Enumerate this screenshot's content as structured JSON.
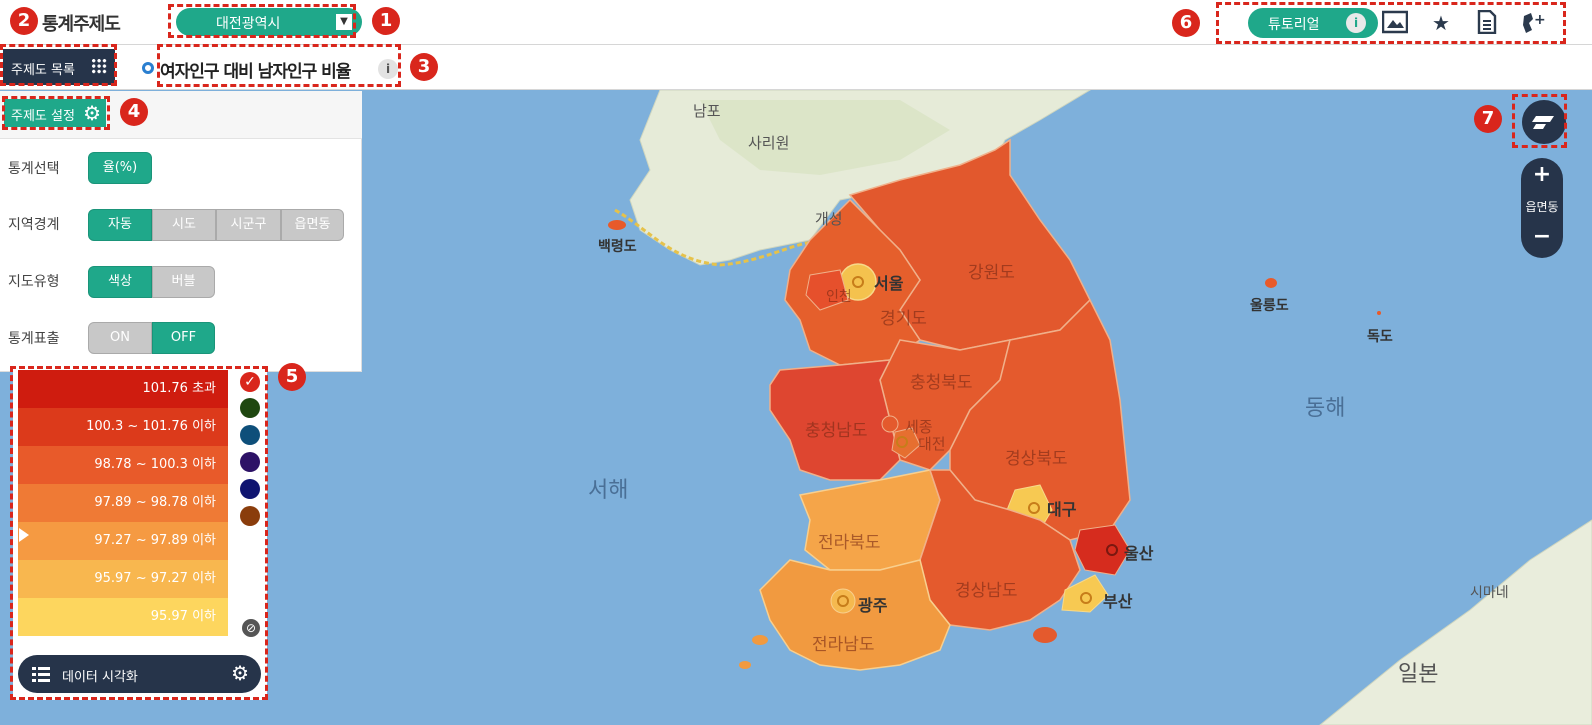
{
  "header": {
    "app_title": "통계주제도",
    "region_select": "대전광역시",
    "tutorial_label": "튜토리얼"
  },
  "subbar": {
    "theme_list_label": "주제도 목록",
    "map_title": "여자인구 대비 남자인구 비율"
  },
  "settings": {
    "button_label": "주제도 설정",
    "rows": [
      {
        "label": "통계선택",
        "options": [
          "율(%)"
        ],
        "selected": 0
      },
      {
        "label": "지역경계",
        "options": [
          "자동",
          "시도",
          "시군구",
          "읍면동"
        ],
        "selected": 0
      },
      {
        "label": "지도유형",
        "options": [
          "색상",
          "버블"
        ],
        "selected": 0
      },
      {
        "label": "통계표출",
        "options": [
          "ON",
          "OFF"
        ],
        "selected": 1
      }
    ]
  },
  "legend": {
    "classes": [
      {
        "label": "101.76 초과",
        "color": "#cf1c0f"
      },
      {
        "label": "100.3 ~ 101.76 이하",
        "color": "#dc3a1b"
      },
      {
        "label": "98.78 ~ 100.3 이하",
        "color": "#e85a2a"
      },
      {
        "label": "97.89 ~ 98.78 이하",
        "color": "#ef7a35"
      },
      {
        "label": "97.27 ~ 97.89 이하",
        "color": "#f59a42"
      },
      {
        "label": "95.97 ~ 97.27 이하",
        "color": "#f8b74f"
      },
      {
        "label": "95.97 이하",
        "color": "#fdd65e"
      }
    ],
    "palette": [
      "#d9261c",
      "#1f4710",
      "#0e4f7a",
      "#2d1266",
      "#0f1470",
      "#8a3d0c"
    ],
    "data_viz_label": "데이터 시각화"
  },
  "map": {
    "zoom_level_label": "읍면동",
    "labels": {
      "nampo": "남포",
      "sariwon": "사리원",
      "gaeseong": "개성",
      "baengnyeong": "백령도",
      "seoul": "서울",
      "incheon": "인천",
      "gyeonggi": "경기도",
      "gangwon": "강원도",
      "chungbuk": "충청북도",
      "chungnam": "충청남도",
      "sejong": "세종",
      "daejeon": "대전",
      "gyeongbuk": "경상북도",
      "daegu": "대구",
      "ulsan": "울산",
      "jeonbuk": "전라북도",
      "gwangju": "광주",
      "jeonnam": "전라남도",
      "gyeongnam": "경상남도",
      "busan": "부산",
      "ulleungdo": "울릉도",
      "dokdo": "독도",
      "east_sea": "동해",
      "west_sea": "서해",
      "shimane": "시마네",
      "japan": "일본"
    }
  },
  "callouts": [
    "1",
    "2",
    "3",
    "4",
    "5",
    "6",
    "7"
  ]
}
